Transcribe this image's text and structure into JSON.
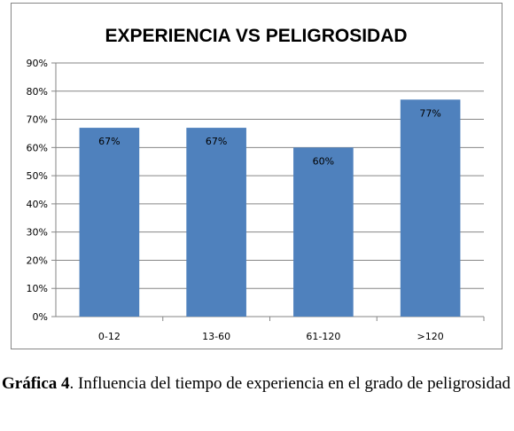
{
  "chart_data": {
    "type": "bar",
    "title": "EXPERIENCIA VS PELIGROSIDAD",
    "categories": [
      "0-12",
      "13-60",
      "61-120",
      ">120"
    ],
    "values": [
      67,
      67,
      60,
      77
    ],
    "data_labels": [
      "67%",
      "67%",
      "60%",
      "77%"
    ],
    "ylim": [
      0,
      90
    ],
    "yticks": [
      0,
      10,
      20,
      30,
      40,
      50,
      60,
      70,
      80,
      90
    ],
    "ytick_labels": [
      "0%",
      "10%",
      "20%",
      "30%",
      "40%",
      "50%",
      "60%",
      "70%",
      "80%",
      "90%"
    ],
    "xlabel": "",
    "ylabel": "",
    "grid": true,
    "legend": "none",
    "bar_color": "#4F81BD"
  },
  "caption": {
    "label": "Gráfica 4",
    "text": ". Influencia del tiempo de experiencia en el grado de peligrosidad"
  }
}
